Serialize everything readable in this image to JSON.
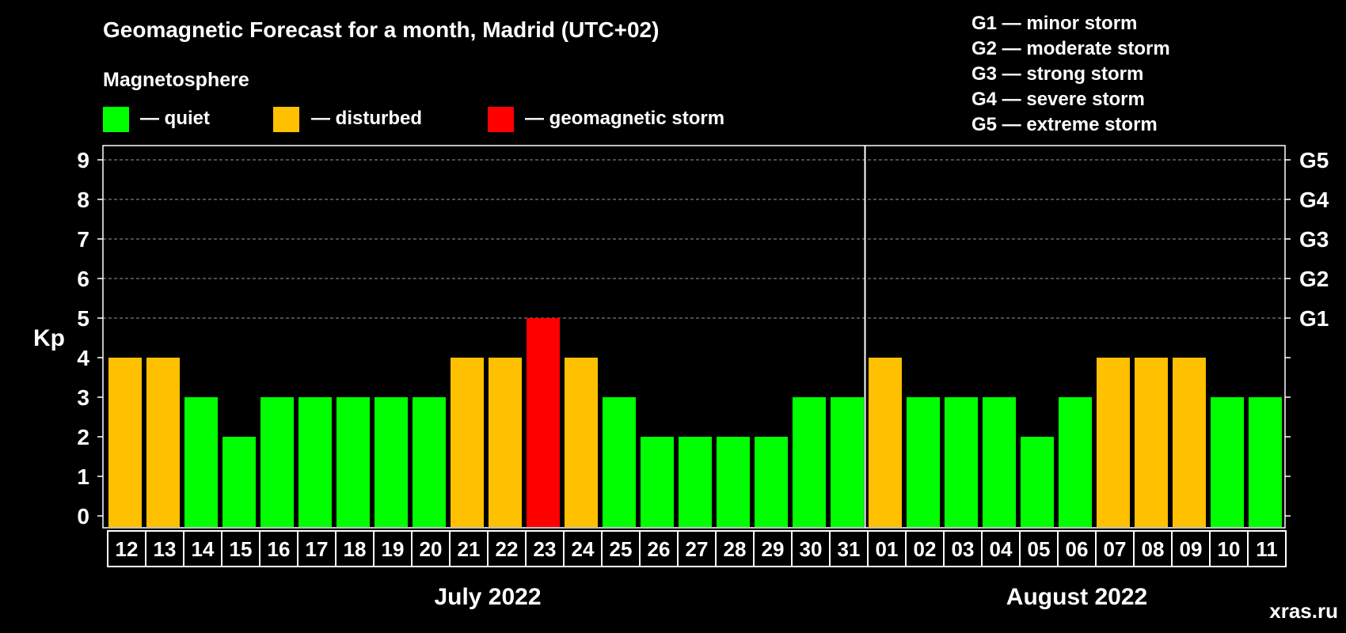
{
  "colors": {
    "quiet": "#00ff00",
    "disturbed": "#ffc000",
    "storm": "#ff0000",
    "background": "#000000",
    "foreground": "#ffffff",
    "watermark": "#7a7a7a"
  },
  "title": "Geomagnetic Forecast for a month, Madrid (UTC+02)",
  "legend": {
    "heading": "Magnetosphere",
    "items": [
      {
        "key": "quiet",
        "label": "— quiet"
      },
      {
        "key": "disturbed",
        "label": "— disturbed"
      },
      {
        "key": "storm",
        "label": "— geomagnetic storm"
      }
    ]
  },
  "storm_scale": [
    "G1 — minor storm",
    "G2 — moderate storm",
    "G3 — strong storm",
    "G4 — severe storm",
    "G5 — extreme storm"
  ],
  "watermark": "xras.ru",
  "chart_data": {
    "type": "bar",
    "title": "Geomagnetic Forecast for a month, Madrid (UTC+02)",
    "ylabel": "Kp",
    "xlabel": "",
    "ylim": [
      0,
      9
    ],
    "yticks": [
      "0",
      "1",
      "2",
      "3",
      "4",
      "5",
      "6",
      "7",
      "8",
      "9"
    ],
    "right_axis": [
      {
        "kp": 5,
        "label": "G1"
      },
      {
        "kp": 6,
        "label": "G2"
      },
      {
        "kp": 7,
        "label": "G3"
      },
      {
        "kp": 8,
        "label": "G4"
      },
      {
        "kp": 9,
        "label": "G5"
      }
    ],
    "grid": "dashed horizontal at Kp 5-9",
    "categories": [
      "12",
      "13",
      "14",
      "15",
      "16",
      "17",
      "18",
      "19",
      "20",
      "21",
      "22",
      "23",
      "24",
      "25",
      "26",
      "27",
      "28",
      "29",
      "30",
      "31",
      "01",
      "02",
      "03",
      "04",
      "05",
      "06",
      "07",
      "08",
      "09",
      "10",
      "11"
    ],
    "values": [
      4,
      4,
      3,
      2,
      3,
      3,
      3,
      3,
      3,
      4,
      4,
      5,
      4,
      3,
      2,
      2,
      2,
      2,
      3,
      3,
      4,
      3,
      3,
      3,
      2,
      3,
      4,
      4,
      4,
      3,
      3
    ],
    "status": [
      "disturbed",
      "disturbed",
      "quiet",
      "quiet",
      "quiet",
      "quiet",
      "quiet",
      "quiet",
      "quiet",
      "disturbed",
      "disturbed",
      "storm",
      "disturbed",
      "quiet",
      "quiet",
      "quiet",
      "quiet",
      "quiet",
      "quiet",
      "quiet",
      "disturbed",
      "quiet",
      "quiet",
      "quiet",
      "quiet",
      "quiet",
      "disturbed",
      "disturbed",
      "disturbed",
      "quiet",
      "quiet"
    ],
    "months": [
      {
        "label": "July 2022",
        "start": 0,
        "count": 20
      },
      {
        "label": "August 2022",
        "start": 20,
        "count": 11
      }
    ]
  }
}
